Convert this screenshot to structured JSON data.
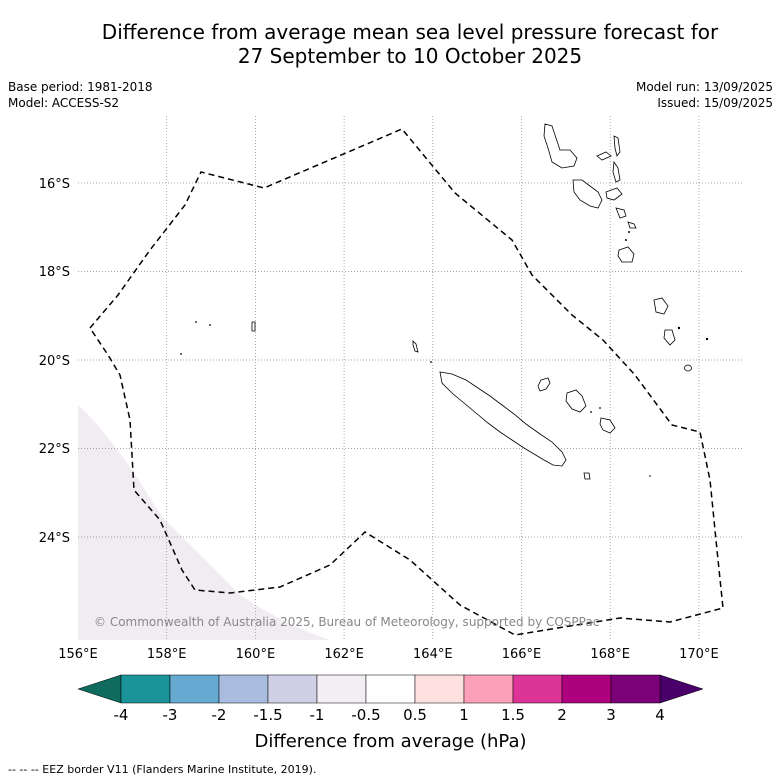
{
  "title": {
    "line1": "Difference from average mean sea level pressure forecast for",
    "line2": "27 September to 10 October 2025"
  },
  "meta_left": {
    "base_period": "Base period: 1981-2018",
    "model": "Model: ACCESS-S2"
  },
  "meta_right": {
    "model_run": "Model run: 13/09/2025",
    "issued": "Issued: 15/09/2025"
  },
  "map": {
    "lon_labels": [
      "156°E",
      "158°E",
      "160°E",
      "162°E",
      "164°E",
      "166°E",
      "168°E",
      "170°E"
    ],
    "lat_labels": [
      "16°S",
      "18°S",
      "20°S",
      "22°S",
      "24°S"
    ],
    "copyright": "© Commonwealth of Australia 2025, Bureau of Meteorology, supported by COSPPac",
    "shaded_anomaly_color": "#f0ecf2",
    "border_style": "dashed"
  },
  "colorbar": {
    "title": "Difference from average (hPa)",
    "labels": [
      "-4",
      "-3",
      "-2",
      "-1.5",
      "-1",
      "-0.5",
      "0.5",
      "1",
      "1.5",
      "2",
      "3",
      "4"
    ],
    "colors": [
      "#1a9498",
      "#66a9d1",
      "#a7bcdf",
      "#cfd0e6",
      "#f2eef4",
      "#ffffff",
      "#fee0df",
      "#fca0b8",
      "#dd3497",
      "#ae017e",
      "#7a0177"
    ],
    "under_color": "#0e6b5e",
    "over_color": "#49006a"
  },
  "footnote": "--  --  -- EEZ border V11 (Flanders Marine Institute, 2019)."
}
